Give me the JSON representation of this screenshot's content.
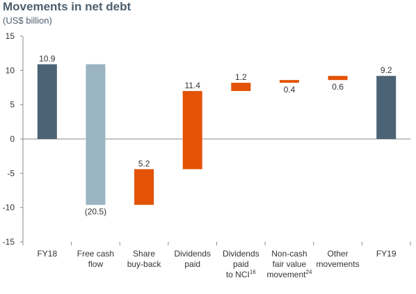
{
  "title": "Movements in net debt",
  "subtitle": "(US$ billion)",
  "colors": {
    "total": "#4b6374",
    "cash_flow": "#9ab4c2",
    "outflow": "#e35205",
    "axis": "#888888",
    "text": "#333333"
  },
  "chart_data": {
    "type": "bar",
    "subtype": "waterfall",
    "ylim": [
      -15,
      15
    ],
    "yticks": [
      15,
      10,
      5,
      0,
      -5,
      -10,
      -15
    ],
    "grid": false,
    "categories": [
      {
        "lines": [
          "FY18"
        ]
      },
      {
        "lines": [
          "Free cash",
          "flow"
        ]
      },
      {
        "lines": [
          "Share",
          "buy-back"
        ]
      },
      {
        "lines": [
          "Dividends",
          "paid"
        ]
      },
      {
        "lines": [
          "Dividends",
          "paid",
          "to NCI"
        ],
        "sup": "16"
      },
      {
        "lines": [
          "Non-cash",
          "fair value",
          "movement"
        ],
        "sup": "24"
      },
      {
        "lines": [
          "Other",
          "movements"
        ]
      },
      {
        "lines": [
          "FY19"
        ]
      }
    ],
    "bars": [
      {
        "start": 0,
        "end": 10.9,
        "label": "10.9",
        "kind": "total",
        "label_pos": "above"
      },
      {
        "start": 10.9,
        "end": -9.6,
        "label": "(20.5)",
        "kind": "cash_flow",
        "label_pos": "below"
      },
      {
        "start": -9.6,
        "end": -4.4,
        "label": "5.2",
        "kind": "outflow",
        "label_pos": "above"
      },
      {
        "start": -4.4,
        "end": 7.0,
        "label": "11.4",
        "kind": "outflow",
        "label_pos": "above"
      },
      {
        "start": 7.0,
        "end": 8.2,
        "label": "1.2",
        "kind": "outflow",
        "label_pos": "above"
      },
      {
        "start": 8.2,
        "end": 8.6,
        "label": "0.4",
        "kind": "outflow",
        "label_pos": "below"
      },
      {
        "start": 8.6,
        "end": 9.2,
        "label": "0.6",
        "kind": "outflow",
        "label_pos": "below"
      },
      {
        "start": 0,
        "end": 9.2,
        "label": "9.2",
        "kind": "total",
        "label_pos": "above"
      }
    ]
  }
}
